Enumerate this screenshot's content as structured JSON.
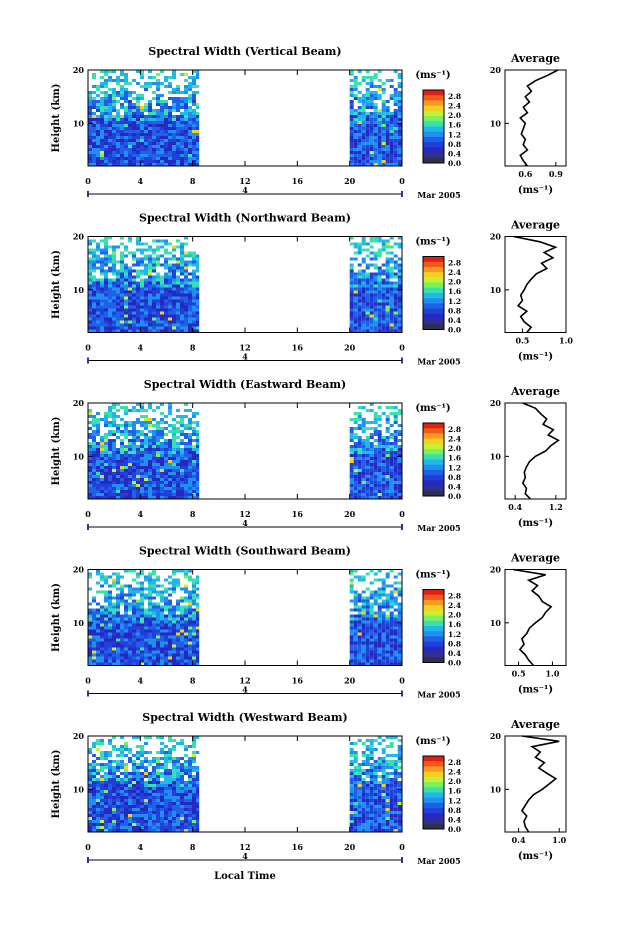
{
  "figure": {
    "xlabel": "Local Time",
    "date_label": "Mar 2005",
    "day_label": "4",
    "avg_title": "Average"
  },
  "colorbar": {
    "unit_label": "(ms⁻¹)",
    "ticks": [
      "2.8",
      "2.4",
      "2.0",
      "1.6",
      "1.2",
      "0.8",
      "0.4",
      "0.0"
    ],
    "colors": [
      "#e02010",
      "#f05a18",
      "#f89a20",
      "#f5d020",
      "#c8f030",
      "#78f060",
      "#38e0b0",
      "#20b8e8",
      "#2090f0",
      "#2060e8",
      "#2040d8",
      "#2828c0",
      "#303090",
      "#303048"
    ]
  },
  "chart_data": [
    {
      "type": "heatmap",
      "title": "Spectral Width (Vertical Beam)",
      "ylabel": "Height (km)",
      "xlim": [
        0,
        24
      ],
      "ylim": [
        2,
        20
      ],
      "x_ticks": [
        "0",
        "4",
        "8",
        "12",
        "16",
        "20",
        "0"
      ],
      "y_ticks": [
        "10",
        "20"
      ],
      "data_windows_hours": [
        [
          0,
          8.5
        ],
        [
          20,
          24
        ]
      ],
      "avg_profile": {
        "xlim": [
          0.4,
          1.0
        ],
        "x_ticks": [
          "0.6",
          "0.9"
        ],
        "x_tick_values": [
          0.6,
          0.9
        ],
        "xlabel": "(ms⁻¹)",
        "y_ticks": [
          "10",
          "20"
        ],
        "height_km": [
          2,
          3,
          4,
          5,
          6,
          7,
          8,
          9,
          10,
          11,
          12,
          13,
          14,
          15,
          16,
          17,
          18,
          19,
          20
        ],
        "values": [
          0.62,
          0.58,
          0.55,
          0.62,
          0.58,
          0.6,
          0.56,
          0.58,
          0.6,
          0.55,
          0.62,
          0.58,
          0.64,
          0.6,
          0.66,
          0.62,
          0.7,
          0.82,
          0.92
        ]
      }
    },
    {
      "type": "heatmap",
      "title": "Spectral Width (Northward Beam)",
      "ylabel": "Height (km)",
      "xlim": [
        0,
        24
      ],
      "ylim": [
        2,
        20
      ],
      "x_ticks": [
        "0",
        "4",
        "8",
        "12",
        "16",
        "20",
        "0"
      ],
      "y_ticks": [
        "10",
        "20"
      ],
      "data_windows_hours": [
        [
          0,
          8.5
        ],
        [
          20,
          24
        ]
      ],
      "avg_profile": {
        "xlim": [
          0.3,
          1.0
        ],
        "x_ticks": [
          "0.5",
          "1.0"
        ],
        "x_tick_values": [
          0.5,
          1.0
        ],
        "xlabel": "(ms⁻¹)",
        "y_ticks": [
          "10",
          "20"
        ],
        "height_km": [
          2,
          3,
          4,
          5,
          6,
          7,
          8,
          9,
          10,
          11,
          12,
          13,
          14,
          15,
          16,
          17,
          18,
          19,
          20
        ],
        "values": [
          0.55,
          0.6,
          0.52,
          0.48,
          0.55,
          0.45,
          0.5,
          0.48,
          0.52,
          0.55,
          0.6,
          0.66,
          0.78,
          0.72,
          0.85,
          0.75,
          0.88,
          0.7,
          0.4
        ]
      }
    },
    {
      "type": "heatmap",
      "title": "Spectral Width (Eastward Beam)",
      "ylabel": "Height (km)",
      "xlim": [
        0,
        24
      ],
      "ylim": [
        2,
        20
      ],
      "x_ticks": [
        "0",
        "4",
        "8",
        "12",
        "16",
        "20",
        "0"
      ],
      "y_ticks": [
        "10",
        "20"
      ],
      "data_windows_hours": [
        [
          0,
          8.5
        ],
        [
          20,
          24
        ]
      ],
      "avg_profile": {
        "xlim": [
          0.2,
          1.4
        ],
        "x_ticks": [
          "0.4",
          "1.2"
        ],
        "x_tick_values": [
          0.4,
          1.2
        ],
        "xlabel": "(ms⁻¹)",
        "y_ticks": [
          "10",
          "20"
        ],
        "height_km": [
          2,
          3,
          4,
          5,
          6,
          7,
          8,
          9,
          10,
          11,
          12,
          13,
          14,
          15,
          16,
          17,
          18,
          19,
          20
        ],
        "values": [
          0.7,
          0.6,
          0.62,
          0.55,
          0.6,
          0.58,
          0.62,
          0.68,
          0.8,
          1.0,
          1.1,
          1.25,
          1.05,
          1.15,
          0.95,
          1.02,
          0.9,
          0.8,
          0.55
        ]
      }
    },
    {
      "type": "heatmap",
      "title": "Spectral Width (Southward Beam)",
      "ylabel": "Height (km)",
      "xlim": [
        0,
        24
      ],
      "ylim": [
        2,
        20
      ],
      "x_ticks": [
        "0",
        "4",
        "8",
        "12",
        "16",
        "20",
        "0"
      ],
      "y_ticks": [
        "10",
        "20"
      ],
      "data_windows_hours": [
        [
          0,
          8.5
        ],
        [
          20,
          24
        ]
      ],
      "avg_profile": {
        "xlim": [
          0.3,
          1.2
        ],
        "x_ticks": [
          "0.5",
          "1.0"
        ],
        "x_tick_values": [
          0.5,
          1.0
        ],
        "xlabel": "(ms⁻¹)",
        "y_ticks": [
          "10",
          "20"
        ],
        "height_km": [
          2,
          3,
          4,
          5,
          6,
          7,
          8,
          9,
          10,
          11,
          12,
          13,
          14,
          15,
          16,
          17,
          18,
          19,
          20
        ],
        "values": [
          0.72,
          0.65,
          0.6,
          0.52,
          0.58,
          0.55,
          0.62,
          0.66,
          0.75,
          0.85,
          0.9,
          0.98,
          0.85,
          0.8,
          0.7,
          0.78,
          0.65,
          0.9,
          0.42
        ]
      }
    },
    {
      "type": "heatmap",
      "title": "Spectral Width (Westward Beam)",
      "ylabel": "Height (km)",
      "xlim": [
        0,
        24
      ],
      "ylim": [
        2,
        20
      ],
      "x_ticks": [
        "0",
        "4",
        "8",
        "12",
        "16",
        "20",
        "0"
      ],
      "y_ticks": [
        "10",
        "20"
      ],
      "data_windows_hours": [
        [
          0,
          8.5
        ],
        [
          20,
          24
        ]
      ],
      "avg_profile": {
        "xlim": [
          0.2,
          1.1
        ],
        "x_ticks": [
          "0.4",
          "1.0"
        ],
        "x_tick_values": [
          0.4,
          1.0
        ],
        "xlabel": "(ms⁻¹)",
        "y_ticks": [
          "10",
          "20"
        ],
        "height_km": [
          2,
          3,
          4,
          5,
          6,
          7,
          8,
          9,
          10,
          11,
          12,
          13,
          14,
          15,
          16,
          17,
          18,
          19,
          20
        ],
        "values": [
          0.55,
          0.5,
          0.48,
          0.52,
          0.45,
          0.5,
          0.55,
          0.62,
          0.75,
          0.85,
          0.95,
          0.82,
          0.7,
          0.78,
          0.65,
          0.72,
          0.6,
          1.0,
          0.45
        ]
      }
    }
  ]
}
